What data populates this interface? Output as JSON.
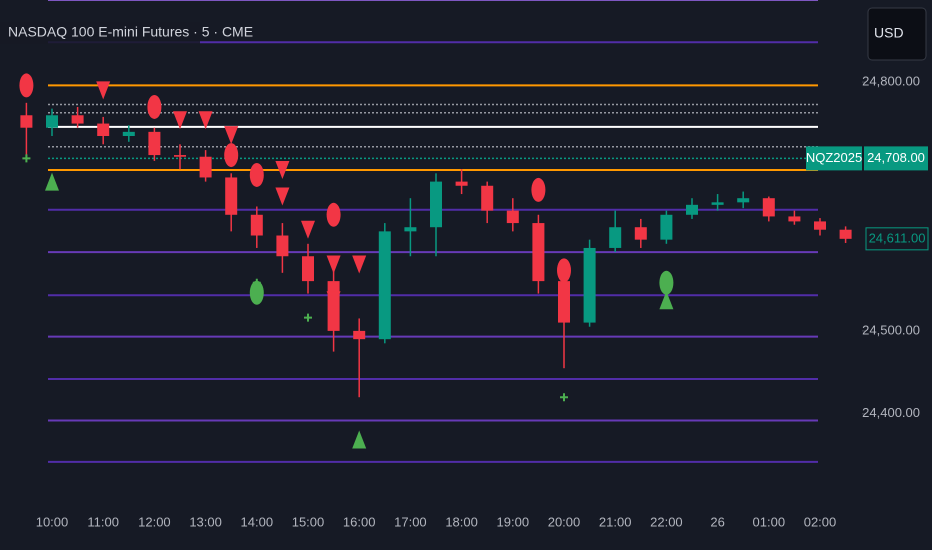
{
  "chart_data": {
    "type": "candlestick",
    "title": "NASDAQ 100 E-mini Futures · 5 · CME",
    "currency": "USD",
    "up_color": "#089981",
    "down_color": "#f23645",
    "categories": [
      null,
      "10:00",
      null,
      "11:00",
      null,
      "12:00",
      null,
      "13:00",
      null,
      "14:00",
      null,
      "15:00",
      null,
      "16:00",
      null,
      "17:00",
      null,
      "18:00",
      null,
      "19:00",
      null,
      "20:00",
      null,
      "21:00",
      null,
      "22:00",
      null,
      "26",
      null,
      "01:00",
      null,
      "02:00",
      null
    ],
    "open": [
      24760,
      24745,
      24760,
      24750,
      24735,
      24740,
      24712,
      24710,
      24685,
      24640,
      24615,
      24590,
      24560,
      24500,
      24490,
      24620,
      24625,
      24680,
      24675,
      24645,
      24630,
      24560,
      24510,
      24600,
      24625,
      24610,
      24640,
      24652,
      24655,
      24660,
      24638,
      24632,
      24622
    ],
    "high": [
      24775,
      24768,
      24770,
      24758,
      24748,
      24745,
      24725,
      24718,
      24690,
      24650,
      24630,
      24605,
      24585,
      24515,
      24630,
      24660,
      24690,
      24695,
      24680,
      24660,
      24640,
      24575,
      24610,
      24645,
      24635,
      24645,
      24660,
      24665,
      24668,
      24662,
      24645,
      24636,
      24626
    ],
    "low": [
      24710,
      24735,
      24745,
      24725,
      24728,
      24705,
      24695,
      24680,
      24620,
      24600,
      24570,
      24545,
      24475,
      24420,
      24485,
      24590,
      24590,
      24665,
      24630,
      24620,
      24545,
      24455,
      24505,
      24595,
      24600,
      24605,
      24635,
      24645,
      24648,
      24632,
      24628,
      24615,
      24606
    ],
    "close": [
      24745,
      24760,
      24750,
      24735,
      24740,
      24712,
      24710,
      24685,
      24640,
      24615,
      24590,
      24560,
      24500,
      24490,
      24620,
      24625,
      24680,
      24675,
      24645,
      24630,
      24560,
      24510,
      24600,
      24625,
      24610,
      24640,
      24652,
      24655,
      24660,
      24638,
      24632,
      24622,
      24611
    ],
    "ylim": [
      24284,
      24899
    ],
    "yticks": [
      {
        "value": 24400,
        "label": "24,400.00"
      },
      {
        "value": 24500,
        "label": "24,500.00"
      },
      {
        "value": 24800,
        "label": "24,800.00"
      }
    ],
    "levels": [
      {
        "value": 24899,
        "color": "#7e57c2",
        "style": "solid"
      },
      {
        "value": 24848,
        "color": "#512da8",
        "style": "solid"
      },
      {
        "value": 24796,
        "color": "#ff9800",
        "style": "solid"
      },
      {
        "value": 24773,
        "color": "#9598a1",
        "style": "dotted"
      },
      {
        "value": 24763,
        "color": "#9598a1",
        "style": "dotted"
      },
      {
        "value": 24746,
        "color": "#ffffff",
        "style": "solid"
      },
      {
        "value": 24722,
        "color": "#9598a1",
        "style": "dotted"
      },
      {
        "value": 24694,
        "color": "#ff9800",
        "style": "solid"
      },
      {
        "value": 24646,
        "color": "#512da8",
        "style": "solid"
      },
      {
        "value": 24595,
        "color": "#673ab7",
        "style": "solid"
      },
      {
        "value": 24543,
        "color": "#512da8",
        "style": "solid"
      },
      {
        "value": 24493,
        "color": "#673ab7",
        "style": "solid"
      },
      {
        "value": 24442,
        "color": "#512da8",
        "style": "solid"
      },
      {
        "value": 24392,
        "color": "#673ab7",
        "style": "solid"
      },
      {
        "value": 24342,
        "color": "#512da8",
        "style": "solid"
      }
    ],
    "contract_tag": {
      "name": "NQZ2025",
      "value": 24708,
      "label": "24,708.00",
      "color": "#089981"
    },
    "last_price": {
      "value": 24611,
      "label": "24,611.00",
      "color": "#089981"
    },
    "signals": [
      {
        "shape": "ellipse",
        "index": 0,
        "price": 24796,
        "color": "#f23645"
      },
      {
        "shape": "triangle-down",
        "index": 3,
        "price": 24790,
        "color": "#f23645"
      },
      {
        "shape": "ellipse",
        "index": 5,
        "price": 24770,
        "color": "#f23645"
      },
      {
        "shape": "triangle-down",
        "index": 6,
        "price": 24754,
        "color": "#f23645"
      },
      {
        "shape": "triangle-down",
        "index": 7,
        "price": 24754,
        "color": "#f23645"
      },
      {
        "shape": "triangle-down",
        "index": 8,
        "price": 24736,
        "color": "#f23645"
      },
      {
        "shape": "ellipse",
        "index": 8,
        "price": 24712,
        "color": "#f23645"
      },
      {
        "shape": "ellipse",
        "index": 9,
        "price": 24688,
        "color": "#f23645"
      },
      {
        "shape": "triangle-down",
        "index": 10,
        "price": 24694,
        "color": "#f23645"
      },
      {
        "shape": "triangle-down",
        "index": 10,
        "price": 24662,
        "color": "#f23645"
      },
      {
        "shape": "triangle-down",
        "index": 11,
        "price": 24622,
        "color": "#f23645"
      },
      {
        "shape": "ellipse",
        "index": 12,
        "price": 24640,
        "color": "#f23645"
      },
      {
        "shape": "triangle-down",
        "index": 12,
        "price": 24580,
        "color": "#f23645"
      },
      {
        "shape": "triangle-down",
        "index": 13,
        "price": 24580,
        "color": "#f23645"
      },
      {
        "shape": "triangle-down",
        "index": 12,
        "price": 24537,
        "color": "#f23645"
      },
      {
        "shape": "ellipse",
        "index": 20,
        "price": 24670,
        "color": "#f23645"
      },
      {
        "shape": "ellipse",
        "index": 21,
        "price": 24573,
        "color": "#f23645"
      },
      {
        "shape": "ellipse",
        "index": 9,
        "price": 24546,
        "color": "#4caf50"
      },
      {
        "shape": "ellipse",
        "index": 25,
        "price": 24558,
        "color": "#4caf50"
      },
      {
        "shape": "triangle-up",
        "index": 1,
        "price": 24680,
        "color": "#4caf50"
      },
      {
        "shape": "triangle-up",
        "index": 13,
        "price": 24369,
        "color": "#4caf50"
      },
      {
        "shape": "triangle-up",
        "index": 25,
        "price": 24537,
        "color": "#4caf50"
      },
      {
        "shape": "plus",
        "index": 0,
        "price": 24708,
        "color": "#4caf50"
      },
      {
        "shape": "plus",
        "index": 9,
        "price": 24558,
        "color": "#4caf50"
      },
      {
        "shape": "plus",
        "index": 11,
        "price": 24516,
        "color": "#4caf50"
      },
      {
        "shape": "plus",
        "index": 21,
        "price": 24420,
        "color": "#4caf50"
      }
    ]
  }
}
